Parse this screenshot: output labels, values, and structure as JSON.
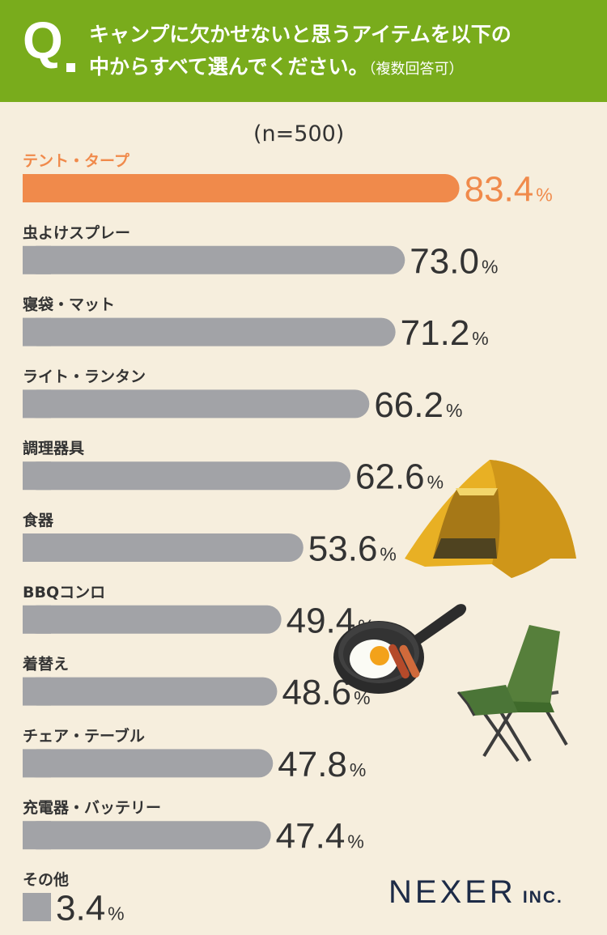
{
  "question": {
    "mark": "Q",
    "line1": "キャンプに欠かせないと思うアイテムを以下の",
    "line2": "中からすべて選んでください。",
    "note": "（複数回答可）"
  },
  "sample_size": "(n=500)",
  "percent_symbol": "%",
  "logo": {
    "main": "NEXER",
    "sub": "INC."
  },
  "colors": {
    "header": "#79ac1c",
    "highlight": "#f08a4b",
    "bar": "#a2a3a7",
    "text": "#333333",
    "background": "#f6eedd"
  },
  "chart_data": {
    "type": "bar",
    "orientation": "horizontal",
    "categories": [
      "テント・タープ",
      "虫よけスプレー",
      "寝袋・マット",
      "ライト・ランタン",
      "調理器具",
      "食器",
      "BBQコンロ",
      "着替え",
      "チェア・テーブル",
      "充電器・バッテリー",
      "その他"
    ],
    "values": [
      83.4,
      73.0,
      71.2,
      66.2,
      62.6,
      53.6,
      49.4,
      48.6,
      47.8,
      47.4,
      3.4
    ],
    "value_labels": [
      "83.4",
      "73.0",
      "71.2",
      "66.2",
      "62.6",
      "53.6",
      "49.4",
      "48.6",
      "47.8",
      "47.4",
      "3.4"
    ],
    "unit": "%",
    "highlight_index": 0,
    "xlim": [
      0,
      100
    ],
    "grid": false
  },
  "illustrations": [
    "tent-icon",
    "frying-pan-icon",
    "camp-chair-icon"
  ]
}
